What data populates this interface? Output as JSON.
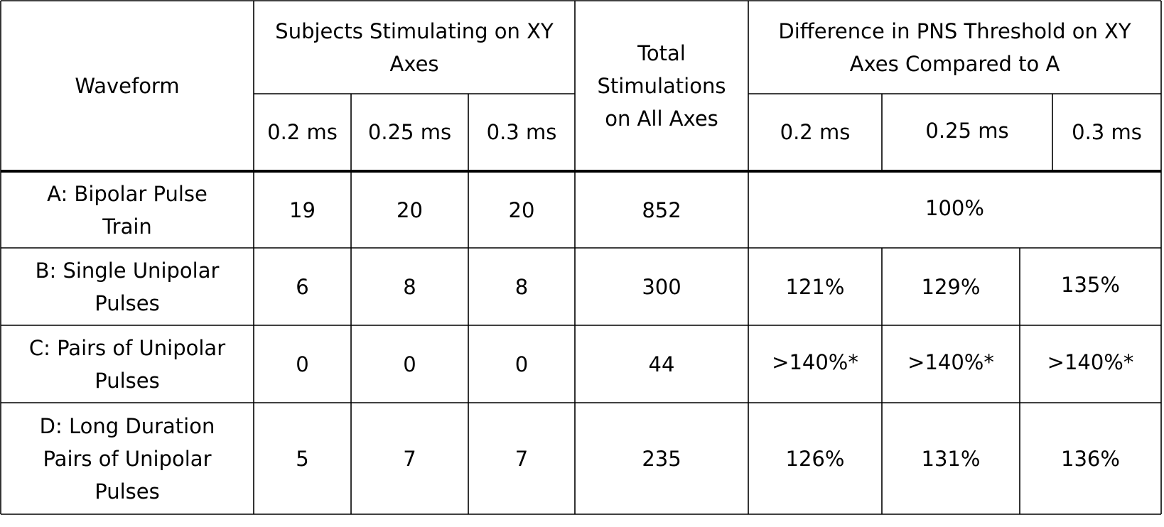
{
  "table": {
    "header": {
      "waveform": "Waveform",
      "subjects_group": "Subjects Stimulating on XY Axes",
      "total": "Total Stimulations on All Axes",
      "difference_group": "Difference in PNS Threshold on XY Axes Compared to A",
      "subjects_sub": [
        "0.2 ms",
        "0.25 ms",
        "0.3 ms"
      ],
      "difference_sub": [
        "0.2 ms",
        "0.25 ms",
        "0.3 ms"
      ]
    },
    "rows": [
      {
        "waveform": "A: Bipolar Pulse Train",
        "subjects": [
          "19",
          "20",
          "20"
        ],
        "total": "852",
        "difference_merged": "100%"
      },
      {
        "waveform": "B: Single Unipolar Pulses",
        "subjects": [
          "6",
          "8",
          "8"
        ],
        "total": "300",
        "difference": [
          "121%",
          "129%",
          "135%"
        ]
      },
      {
        "waveform": "C: Pairs of Unipolar Pulses",
        "subjects": [
          "0",
          "0",
          "0"
        ],
        "total": "44",
        "difference": [
          ">140%*",
          ">140%*",
          ">140%*"
        ]
      },
      {
        "waveform": "D: Long Duration Pairs of Unipolar Pulses",
        "subjects": [
          "5",
          "7",
          "7"
        ],
        "total": "235",
        "difference": [
          "126%",
          "131%",
          "136%"
        ]
      }
    ]
  }
}
